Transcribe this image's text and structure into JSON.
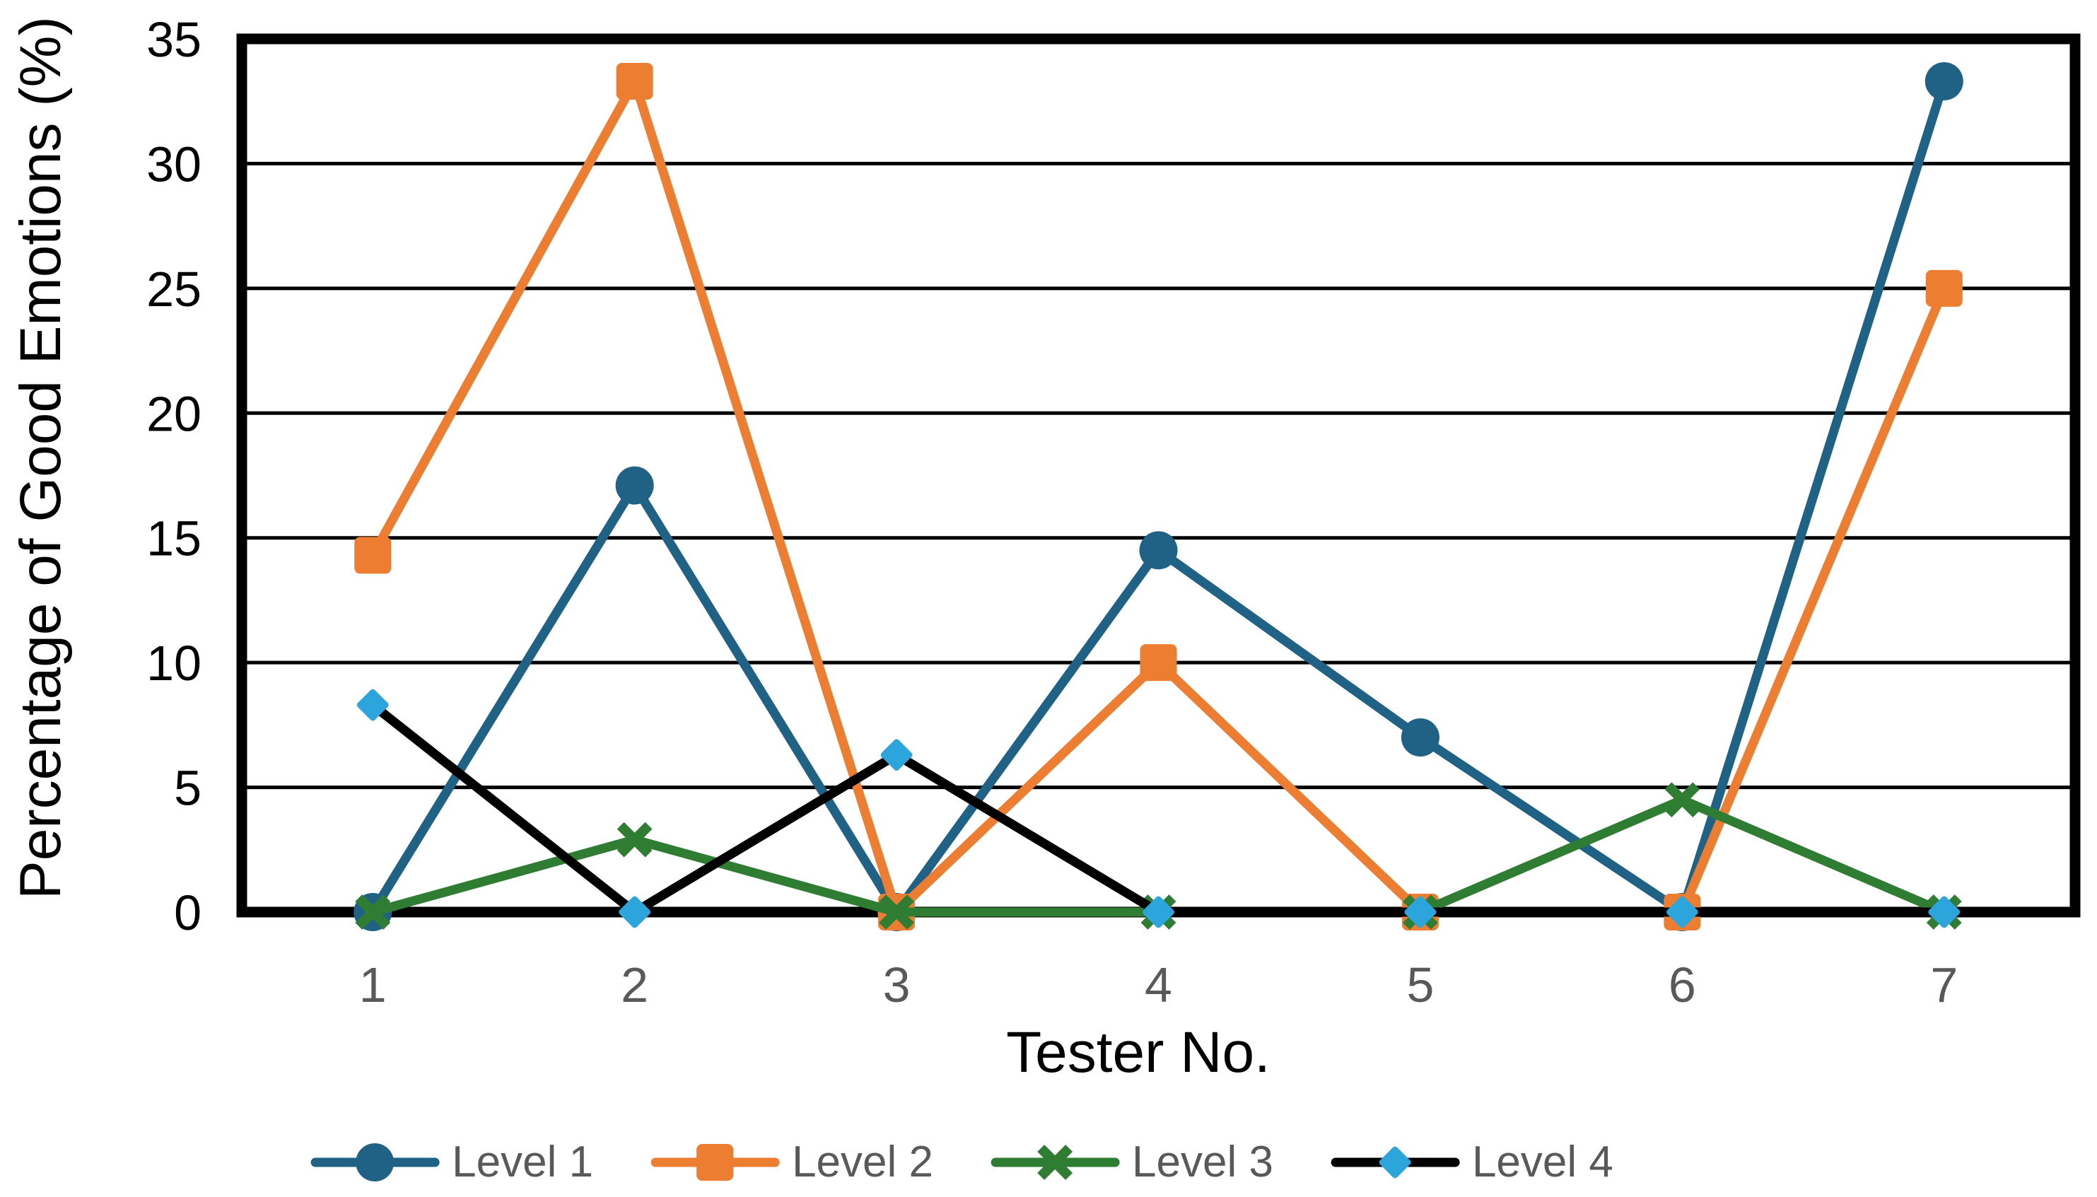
{
  "chart_data": {
    "type": "line",
    "title": "",
    "xlabel": "Tester No.",
    "ylabel": "Percentage of Good Emotions (%)",
    "x": [
      1,
      2,
      3,
      4,
      5,
      6,
      7
    ],
    "ylim": [
      0,
      35
    ],
    "yticks": [
      0,
      5,
      10,
      15,
      20,
      25,
      30,
      35
    ],
    "grid": true,
    "legend_position": "bottom",
    "series": [
      {
        "name": "Level 1",
        "marker": "circle",
        "color": "#1F6286",
        "marker_color": "#1F6286",
        "values": [
          0,
          17.1,
          0,
          14.5,
          7,
          0,
          33.3
        ]
      },
      {
        "name": "Level 2",
        "marker": "square",
        "color": "#ED7D31",
        "marker_color": "#ED7D31",
        "values": [
          14.3,
          33.3,
          0,
          10,
          0,
          0,
          25
        ]
      },
      {
        "name": "Level 3",
        "marker": "x",
        "color": "#2E7D32",
        "marker_color": "#2E7D32",
        "values": [
          0,
          2.9,
          0,
          0,
          0,
          4.5,
          0
        ]
      },
      {
        "name": "Level 4",
        "marker": "diamond",
        "color": "#000000",
        "marker_color": "#2BA5DC",
        "values": [
          8.3,
          0,
          6.3,
          0,
          0,
          0,
          0
        ]
      }
    ]
  },
  "styles": {
    "background": "#FFFFFF",
    "grid_color": "#000000",
    "border_color": "#000000",
    "ytick_color": "#000000",
    "xtick_color": "#595959",
    "legend_text_color": "#595959",
    "axis_title_color": "#000000"
  }
}
